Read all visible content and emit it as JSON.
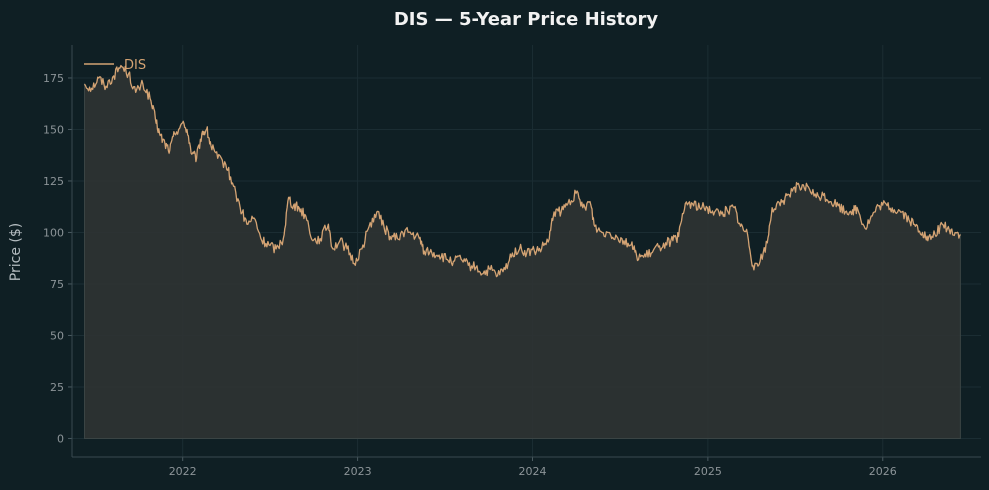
{
  "chart_data": {
    "type": "area",
    "title": "DIS — 5-Year Price History",
    "xlabel": "",
    "ylabel": "Price ($)",
    "ylim": [
      -9,
      191
    ],
    "xlim": [
      "2021-05-15",
      "2026-07-25"
    ],
    "yticks": [
      0,
      25,
      50,
      75,
      100,
      125,
      150,
      175
    ],
    "xticks": [
      "2022",
      "2023",
      "2024",
      "2025",
      "2026"
    ],
    "grid": true,
    "legend": "top-left",
    "series": [
      {
        "name": "DIS",
        "color": "#d4a373",
        "fill_color": "#2e3333",
        "points": [
          [
            "2021-06-10",
            172
          ],
          [
            "2021-06-25",
            170
          ],
          [
            "2021-07-10",
            175
          ],
          [
            "2021-07-25",
            171
          ],
          [
            "2021-08-10",
            176
          ],
          [
            "2021-08-25",
            181
          ],
          [
            "2021-09-10",
            177
          ],
          [
            "2021-09-25",
            168
          ],
          [
            "2021-10-10",
            172
          ],
          [
            "2021-10-25",
            165
          ],
          [
            "2021-11-05",
            155
          ],
          [
            "2021-11-15",
            147
          ],
          [
            "2021-11-25",
            143
          ],
          [
            "2021-12-05",
            140
          ],
          [
            "2021-12-15",
            148
          ],
          [
            "2021-12-30",
            153
          ],
          [
            "2022-01-10",
            150
          ],
          [
            "2022-01-20",
            138
          ],
          [
            "2022-01-30",
            136
          ],
          [
            "2022-02-10",
            148
          ],
          [
            "2022-02-20",
            150
          ],
          [
            "2022-03-01",
            142
          ],
          [
            "2022-03-15",
            136
          ],
          [
            "2022-04-01",
            133
          ],
          [
            "2022-04-15",
            124
          ],
          [
            "2022-05-01",
            112
          ],
          [
            "2022-05-15",
            104
          ],
          [
            "2022-05-30",
            107
          ],
          [
            "2022-06-15",
            96
          ],
          [
            "2022-06-30",
            94
          ],
          [
            "2022-07-15",
            92
          ],
          [
            "2022-07-30",
            97
          ],
          [
            "2022-08-10",
            117
          ],
          [
            "2022-08-20",
            113
          ],
          [
            "2022-09-01",
            112
          ],
          [
            "2022-09-15",
            108
          ],
          [
            "2022-09-30",
            96
          ],
          [
            "2022-10-15",
            97
          ],
          [
            "2022-11-01",
            104
          ],
          [
            "2022-11-10",
            92
          ],
          [
            "2022-11-25",
            96
          ],
          [
            "2022-12-10",
            92
          ],
          [
            "2022-12-25",
            85
          ],
          [
            "2023-01-10",
            92
          ],
          [
            "2023-01-25",
            103
          ],
          [
            "2023-02-10",
            110
          ],
          [
            "2023-02-25",
            103
          ],
          [
            "2023-03-10",
            98
          ],
          [
            "2023-03-25",
            97
          ],
          [
            "2023-04-10",
            101
          ],
          [
            "2023-04-25",
            99
          ],
          [
            "2023-05-10",
            97
          ],
          [
            "2023-05-20",
            91
          ],
          [
            "2023-06-05",
            90
          ],
          [
            "2023-06-20",
            89
          ],
          [
            "2023-07-05",
            87
          ],
          [
            "2023-07-20",
            86
          ],
          [
            "2023-08-05",
            87
          ],
          [
            "2023-08-20",
            84
          ],
          [
            "2023-09-05",
            83
          ],
          [
            "2023-09-20",
            80
          ],
          [
            "2023-10-05",
            82
          ],
          [
            "2023-10-20",
            79
          ],
          [
            "2023-11-05",
            82
          ],
          [
            "2023-11-20",
            90
          ],
          [
            "2023-12-05",
            92
          ],
          [
            "2023-12-20",
            90
          ],
          [
            "2024-01-05",
            91
          ],
          [
            "2024-01-20",
            92
          ],
          [
            "2024-02-05",
            97
          ],
          [
            "2024-02-15",
            110
          ],
          [
            "2024-03-01",
            110
          ],
          [
            "2024-03-15",
            114
          ],
          [
            "2024-04-01",
            119
          ],
          [
            "2024-04-15",
            112
          ],
          [
            "2024-04-30",
            115
          ],
          [
            "2024-05-10",
            103
          ],
          [
            "2024-05-25",
            100
          ],
          [
            "2024-06-10",
            100
          ],
          [
            "2024-06-25",
            98
          ],
          [
            "2024-07-10",
            96
          ],
          [
            "2024-07-25",
            94
          ],
          [
            "2024-08-05",
            89
          ],
          [
            "2024-08-20",
            88
          ],
          [
            "2024-09-05",
            90
          ],
          [
            "2024-09-20",
            93
          ],
          [
            "2024-10-05",
            95
          ],
          [
            "2024-10-20",
            96
          ],
          [
            "2024-11-01",
            98
          ],
          [
            "2024-11-15",
            114
          ],
          [
            "2024-11-30",
            114
          ],
          [
            "2024-12-15",
            112
          ],
          [
            "2024-12-31",
            112
          ],
          [
            "2025-01-15",
            110
          ],
          [
            "2025-01-30",
            109
          ],
          [
            "2025-02-10",
            111
          ],
          [
            "2025-02-25",
            112
          ],
          [
            "2025-03-10",
            103
          ],
          [
            "2025-03-25",
            99
          ],
          [
            "2025-04-05",
            84
          ],
          [
            "2025-04-20",
            86
          ],
          [
            "2025-05-05",
            95
          ],
          [
            "2025-05-15",
            112
          ],
          [
            "2025-06-01",
            113
          ],
          [
            "2025-06-15",
            118
          ],
          [
            "2025-07-01",
            122
          ],
          [
            "2025-07-15",
            121
          ],
          [
            "2025-07-30",
            122
          ],
          [
            "2025-08-15",
            117
          ],
          [
            "2025-08-30",
            118
          ],
          [
            "2025-09-15",
            115
          ],
          [
            "2025-09-30",
            113
          ],
          [
            "2025-10-15",
            110
          ],
          [
            "2025-10-30",
            111
          ],
          [
            "2025-11-10",
            111
          ],
          [
            "2025-11-25",
            102
          ],
          [
            "2025-12-10",
            108
          ],
          [
            "2025-12-25",
            113
          ],
          [
            "2026-01-10",
            113
          ],
          [
            "2026-01-25",
            111
          ],
          [
            "2026-02-10",
            110
          ],
          [
            "2026-02-25",
            106
          ],
          [
            "2026-03-10",
            103
          ],
          [
            "2026-03-25",
            100
          ],
          [
            "2026-04-05",
            96
          ],
          [
            "2026-04-20",
            99
          ],
          [
            "2026-05-05",
            104
          ],
          [
            "2026-05-20",
            101
          ],
          [
            "2026-06-01",
            100
          ],
          [
            "2026-06-12",
            99
          ]
        ]
      }
    ]
  }
}
